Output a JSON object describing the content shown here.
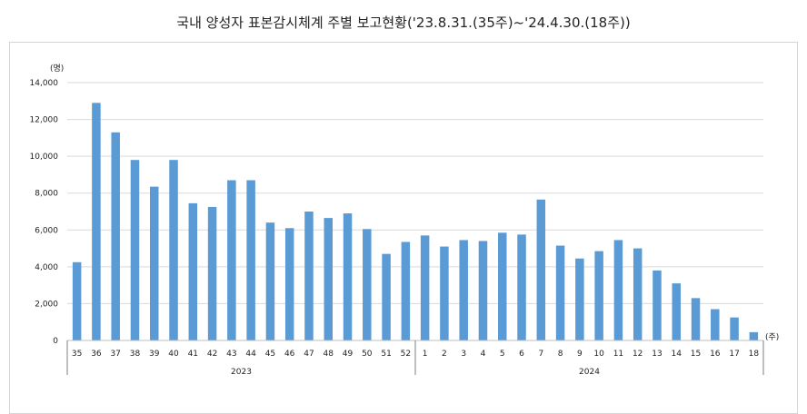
{
  "chart_data": {
    "type": "bar",
    "title": "국내 양성자 표본감시체계 주별 보고현황('23.8.31.(35주)~'24.4.30.(18주))",
    "y_unit": "(명)",
    "x_unit": "(주)",
    "ylim": [
      0,
      14000
    ],
    "yticks": [
      "0",
      "2,000",
      "4,000",
      "6,000",
      "8,000",
      "10,000",
      "12,000",
      "14,000"
    ],
    "ytick_values": [
      0,
      2000,
      4000,
      6000,
      8000,
      10000,
      12000,
      14000
    ],
    "grid": true,
    "bar_color": "#5b9bd5",
    "categories": [
      "35",
      "36",
      "37",
      "38",
      "39",
      "40",
      "41",
      "42",
      "43",
      "44",
      "45",
      "46",
      "47",
      "48",
      "49",
      "50",
      "51",
      "52",
      "1",
      "2",
      "3",
      "4",
      "5",
      "6",
      "7",
      "8",
      "9",
      "10",
      "11",
      "12",
      "13",
      "14",
      "15",
      "16",
      "17",
      "18"
    ],
    "values": [
      4250,
      12900,
      11300,
      9800,
      8350,
      9800,
      7450,
      7250,
      8700,
      8700,
      6400,
      6100,
      7000,
      6650,
      6900,
      6050,
      4700,
      5350,
      5700,
      5100,
      5450,
      5400,
      5850,
      5750,
      7650,
      5150,
      4450,
      4850,
      5450,
      5000,
      3800,
      3100,
      2300,
      1700,
      1250,
      450
    ],
    "groups": [
      {
        "label": "2023",
        "count": 18
      },
      {
        "label": "2024",
        "count": 18
      }
    ]
  }
}
